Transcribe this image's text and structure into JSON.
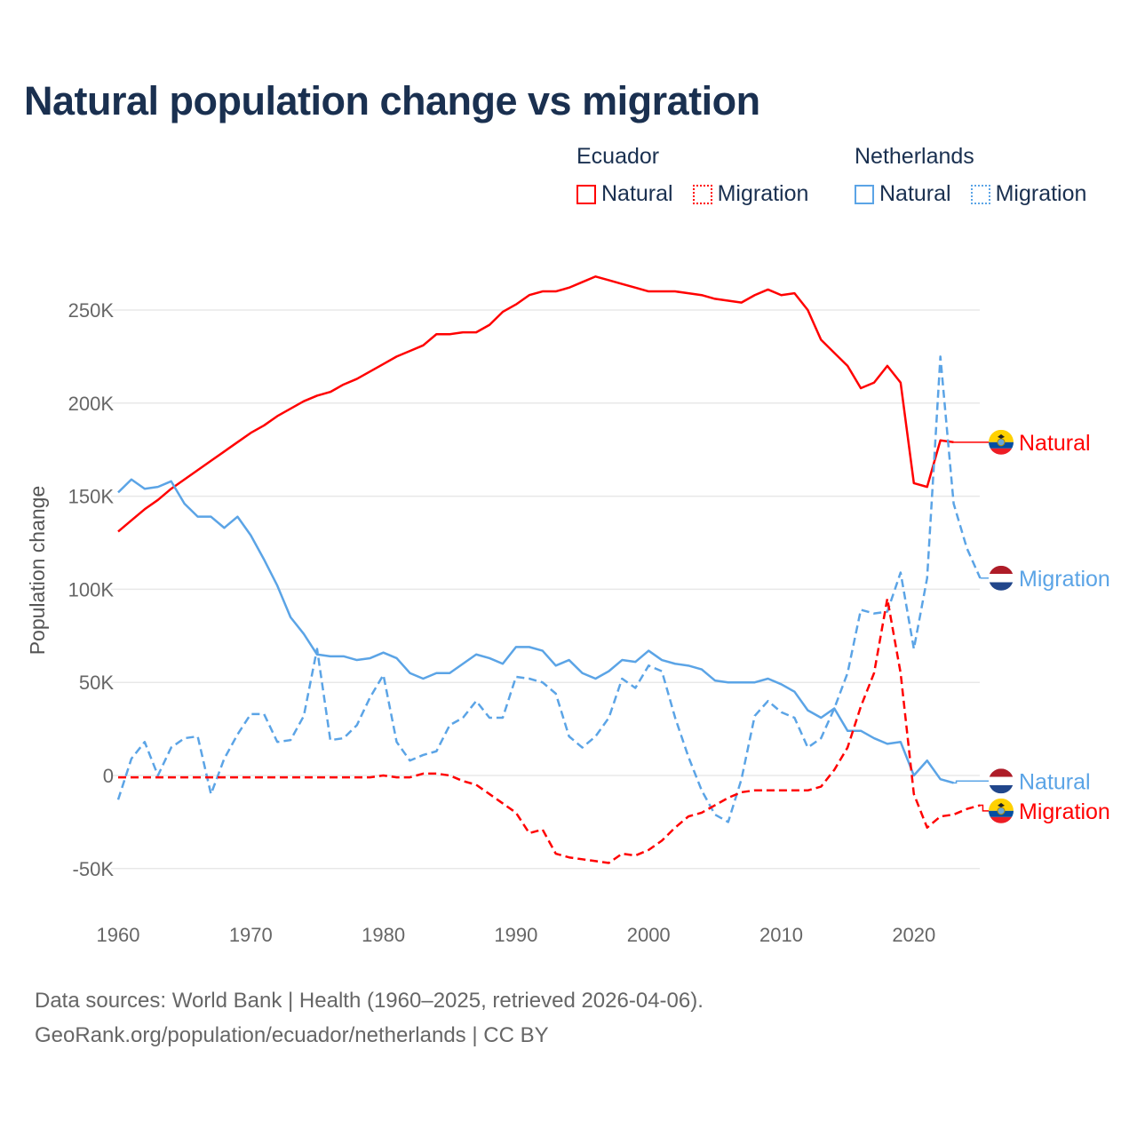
{
  "title": "Natural population change vs migration",
  "legend": {
    "groups": [
      {
        "name": "Ecuador",
        "color": "#ff0000",
        "items": [
          "Natural",
          "Migration"
        ]
      },
      {
        "name": "Netherlands",
        "color": "#5ba4e6",
        "items": [
          "Natural",
          "Migration"
        ]
      }
    ]
  },
  "footer": {
    "line1": "Data sources: World Bank | Health (1960–2025, retrieved 2026-04-06).",
    "line2": "GeoRank.org/population/ecuador/netherlands | CC BY"
  },
  "chart_data": {
    "type": "line",
    "title": "Natural population change vs migration",
    "xlabel": "",
    "ylabel": "Population change",
    "xlim": [
      1960,
      2025
    ],
    "ylim": [
      -75000,
      290000
    ],
    "x_ticks": [
      "1960",
      "1970",
      "1980",
      "1990",
      "2000",
      "2010",
      "2020"
    ],
    "y_ticks": [
      {
        "value": -50000,
        "label": "-50K"
      },
      {
        "value": 0,
        "label": "0"
      },
      {
        "value": 50000,
        "label": "50K"
      },
      {
        "value": 100000,
        "label": "100K"
      },
      {
        "value": 150000,
        "label": "150K"
      },
      {
        "value": 200000,
        "label": "200K"
      },
      {
        "value": 250000,
        "label": "250K"
      }
    ],
    "grid": true,
    "series": [
      {
        "name": "Ecuador Natural",
        "country": "Ecuador",
        "kind": "Natural",
        "color": "#ff0000",
        "dash": false,
        "start": 1960,
        "end_label": "Natural",
        "label_value": 179000,
        "values_k": [
          131,
          137,
          143,
          148,
          154,
          159,
          164,
          169,
          174,
          179,
          184,
          188,
          193,
          197,
          201,
          204,
          206,
          210,
          213,
          217,
          221,
          225,
          228,
          231,
          237,
          237,
          238,
          238,
          242,
          249,
          253,
          258,
          260,
          260,
          262,
          265,
          268,
          266,
          264,
          262,
          260,
          260,
          260,
          259,
          258,
          256,
          255,
          254,
          258,
          261,
          258,
          259,
          250,
          234,
          227,
          220,
          208,
          211,
          220,
          211,
          157,
          155,
          180,
          179
        ]
      },
      {
        "name": "Netherlands Migration",
        "country": "Netherlands",
        "kind": "Migration",
        "color": "#5ba4e6",
        "dash": true,
        "start": 1960,
        "end_label": "Migration",
        "label_value": 106000,
        "values_k": [
          -13,
          9,
          18,
          0,
          15,
          20,
          21,
          -10,
          9,
          22,
          33,
          33,
          18,
          19,
          32,
          68,
          19,
          20,
          27,
          42,
          54,
          18,
          8,
          11,
          13,
          27,
          31,
          40,
          31,
          31,
          53,
          52,
          50,
          44,
          21,
          15,
          21,
          31,
          52,
          47,
          59,
          56,
          31,
          10,
          -8,
          -21,
          -25,
          -2,
          32,
          40,
          34,
          31,
          15,
          20,
          36,
          55,
          89,
          87,
          88,
          109,
          68,
          106,
          225,
          146,
          122,
          106
        ]
      },
      {
        "name": "Netherlands Natural",
        "country": "Netherlands",
        "kind": "Natural",
        "color": "#5ba4e6",
        "dash": false,
        "start": 1960,
        "end_label": "Natural",
        "label_value": -3000,
        "values_k": [
          152,
          159,
          154,
          155,
          158,
          146,
          139,
          139,
          133,
          139,
          129,
          116,
          102,
          85,
          76,
          65,
          64,
          64,
          62,
          63,
          66,
          63,
          55,
          52,
          55,
          55,
          60,
          65,
          63,
          60,
          69,
          69,
          67,
          59,
          62,
          55,
          52,
          56,
          62,
          61,
          67,
          62,
          60,
          59,
          57,
          51,
          50,
          50,
          50,
          52,
          49,
          45,
          35,
          31,
          36,
          24,
          24,
          20,
          17,
          18,
          0,
          8,
          -2,
          -4
        ]
      },
      {
        "name": "Ecuador Migration",
        "country": "Ecuador",
        "kind": "Migration",
        "color": "#ff0000",
        "dash": true,
        "start": 1960,
        "end_label": "Migration",
        "label_value": -19000,
        "values_k": [
          -1,
          -1,
          -1,
          -1,
          -1,
          -1,
          -1,
          -1,
          -1,
          -1,
          -1,
          -1,
          -1,
          -1,
          -1,
          -1,
          -1,
          -1,
          -1,
          -1,
          0,
          -1,
          -1,
          1,
          1,
          0,
          -3,
          -5,
          -10,
          -15,
          -20,
          -31,
          -29,
          -42,
          -44,
          -45,
          -46,
          -47,
          -42,
          -43,
          -40,
          -35,
          -28,
          -22,
          -20,
          -16,
          -12,
          -9,
          -8,
          -8,
          -8,
          -8,
          -8,
          -6,
          3,
          15,
          37,
          55,
          95,
          55,
          -10,
          -28,
          -22,
          -21,
          -18,
          -16
        ]
      }
    ]
  }
}
